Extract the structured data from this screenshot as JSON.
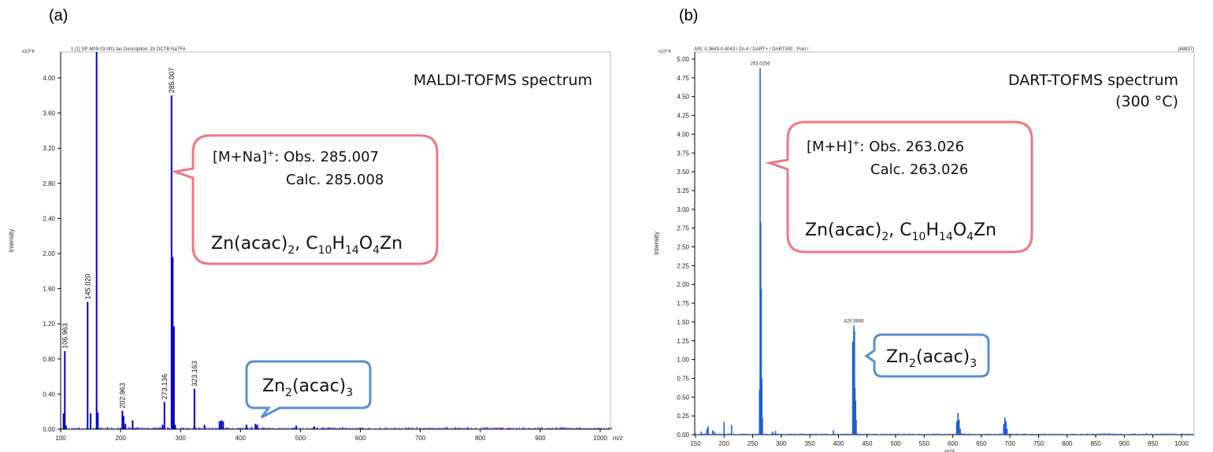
{
  "chart_data": [
    {
      "type": "bar",
      "panel_label": "(a)",
      "header": "1 [1] SP-M09-03-001.tas    Description: Zn DCTB NaTFA",
      "title": "MALDI-TOFMS spectrum",
      "xlabel": "m/z",
      "ylabel": "Intensity",
      "y_multiplier": "x10^6",
      "xlim": [
        100,
        1020
      ],
      "ylim": [
        0,
        4.3
      ],
      "x_ticks": [
        100,
        200,
        300,
        400,
        500,
        600,
        700,
        800,
        900,
        1000
      ],
      "y_ticks": [
        "0.00",
        "0.40",
        "0.80",
        "1.20",
        "1.60",
        "2.00",
        "2.40",
        "2.80",
        "3.20",
        "3.60",
        "4.00"
      ],
      "color": "#0000cc",
      "peaks": {
        "x": [
          104.9,
          106.963,
          109,
          145.02,
          150,
          160,
          162,
          202.963,
          205,
          208,
          220,
          270,
          273.136,
          285.007,
          287,
          289,
          291,
          323.163,
          340,
          365,
          368,
          371,
          410,
          425,
          428,
          493,
          523
        ],
        "y": [
          0.18,
          0.89,
          0.04,
          1.45,
          0.18,
          4.3,
          0.19,
          0.21,
          0.15,
          0.06,
          0.1,
          0.05,
          0.31,
          3.8,
          1.96,
          1.17,
          0.05,
          0.46,
          0.05,
          0.09,
          0.1,
          0.09,
          0.05,
          0.06,
          0.05,
          0.04,
          0.03
        ]
      },
      "peak_labels": [
        "106.963",
        "145.020",
        "202.963",
        "273.136",
        "285.007",
        "323.163"
      ],
      "peak_label_x": [
        106.963,
        145.02,
        202.963,
        273.136,
        285.007,
        323.163
      ],
      "peak_label_y": [
        0.89,
        1.45,
        0.21,
        0.31,
        3.8,
        0.46
      ],
      "callout_main": {
        "line1": "[M+Na]",
        "sup": "+",
        "obs": ": Obs. 285.007",
        "calc": "Calc. 285.008",
        "formula": "Zn(acac)",
        "sub1": "2",
        "formula2": ", C",
        "sub2": "10",
        "h": "H",
        "sub3": "14",
        "o": "O",
        "sub4": "4",
        "zn": "Zn",
        "color": "#f07880"
      },
      "callout_dimer": {
        "text": "Zn",
        "sub1": "2",
        "mid": "(acac)",
        "sub2": "3",
        "color": "#5b8fd0"
      }
    },
    {
      "type": "bar",
      "panel_label": "(b)",
      "header": "MS: 0.3643-0.4043 / Zn-4 / DART+ / DART300 . Posi /",
      "header_right": "(48837)",
      "title": "DART-TOFMS spectrum",
      "subtitle": "(300 °C)",
      "xlabel": "m/z",
      "ylabel": "Intensity",
      "y_multiplier": "x10^4",
      "xlim": [
        150,
        1020
      ],
      "ylim": [
        0,
        5.0
      ],
      "x_ticks": [
        150,
        200,
        250,
        300,
        350,
        400,
        450,
        500,
        550,
        600,
        650,
        700,
        750,
        800,
        850,
        900,
        950,
        1000
      ],
      "y_ticks": [
        "0.00",
        "0.25",
        "0.50",
        "0.75",
        "1.00",
        "1.25",
        "1.50",
        "1.75",
        "2.00",
        "2.25",
        "2.50",
        "2.75",
        "3.00",
        "3.25",
        "3.50",
        "3.75",
        "4.00",
        "4.25",
        "4.50",
        "4.75",
        "5.00"
      ],
      "color": "#1a5fd6",
      "peaks": {
        "x": [
          160,
          170,
          172,
          180,
          183,
          200,
          213,
          262,
          263.0256,
          264,
          265,
          266,
          267,
          285,
          290,
          391,
          425,
          426.9886,
          428,
          429,
          430,
          431,
          607,
          609,
          611,
          613,
          689,
          691,
          693,
          695,
          873
        ],
        "y": [
          0.04,
          0.08,
          0.11,
          0.06,
          0.04,
          0.17,
          0.13,
          0.6,
          4.88,
          2.83,
          1.94,
          0.75,
          0.22,
          0.04,
          0.05,
          0.06,
          1.24,
          1.45,
          1.38,
          0.62,
          0.45,
          0.2,
          0.18,
          0.29,
          0.2,
          0.08,
          0.14,
          0.23,
          0.18,
          0.08,
          0.02
        ]
      },
      "peak_labels": [
        "263.0256",
        "426.9886"
      ],
      "peak_label_x": [
        263.0256,
        426.9886
      ],
      "peak_label_y": [
        4.88,
        1.45
      ],
      "callout_main": {
        "line1": "[M+H]",
        "sup": "+",
        "obs": ": Obs. 263.026",
        "calc": "Calc. 263.026",
        "formula": "Zn(acac)",
        "sub1": "2",
        "formula2": ", C",
        "sub2": "10",
        "h": "H",
        "sub3": "14",
        "o": "O",
        "sub4": "4",
        "zn": "Zn",
        "color": "#f07880"
      },
      "callout_dimer": {
        "text": "Zn",
        "sub1": "2",
        "mid": "(acac)",
        "sub2": "3",
        "color": "#5b8fd0"
      }
    }
  ]
}
